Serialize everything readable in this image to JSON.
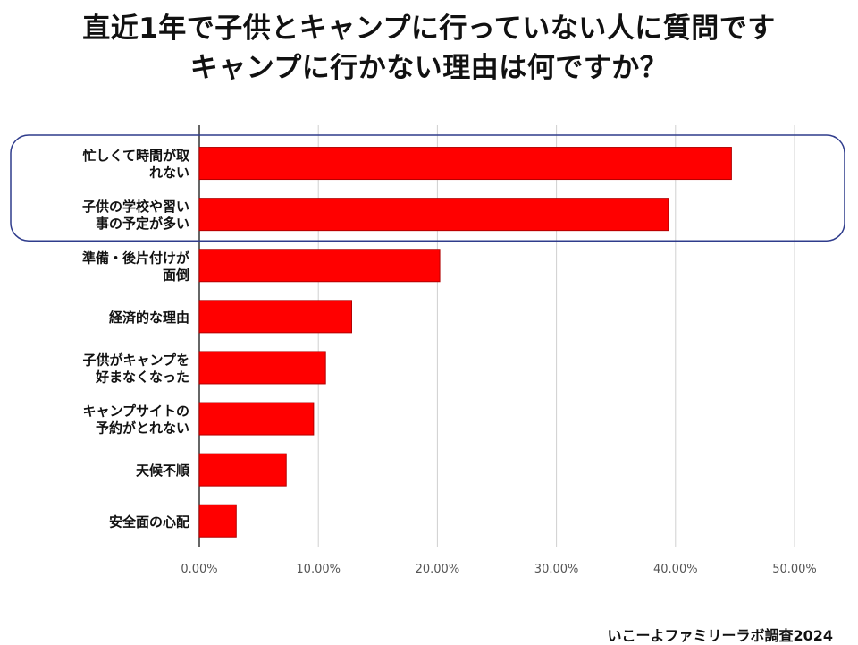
{
  "title": {
    "line1": "直近1年で子供とキャンプに行っていない人に質問です",
    "line2": "キャンプに行かない理由は何ですか？"
  },
  "chart_data": {
    "type": "bar",
    "orientation": "horizontal",
    "categories": [
      [
        "忙しくて時間が取",
        "れない"
      ],
      [
        "子供の学校や習い",
        "事の予定が多い"
      ],
      [
        "準備・後片付けが",
        "面倒"
      ],
      [
        "経済的な理由"
      ],
      [
        "子供がキャンプを",
        "好まなくなった"
      ],
      [
        "キャンプサイトの",
        "予約がとれない"
      ],
      [
        "天候不順"
      ],
      [
        "安全面の心配"
      ]
    ],
    "values": [
      44.7,
      39.4,
      20.2,
      12.8,
      10.6,
      9.6,
      7.3,
      3.1
    ],
    "xlim": [
      0,
      50
    ],
    "ticks": [
      0,
      10,
      20,
      30,
      40,
      50
    ],
    "tick_labels": [
      "0.00%",
      "10.00%",
      "20.00%",
      "30.00%",
      "40.00%",
      "50.00%"
    ],
    "highlight_top_n": 2,
    "grid": true,
    "bar_color": "#ff0000",
    "bar_stroke": "#b30000",
    "highlight_color": "#2f3c8c"
  },
  "footer": {
    "credit": "いこーよファミリーラボ調査2024"
  }
}
